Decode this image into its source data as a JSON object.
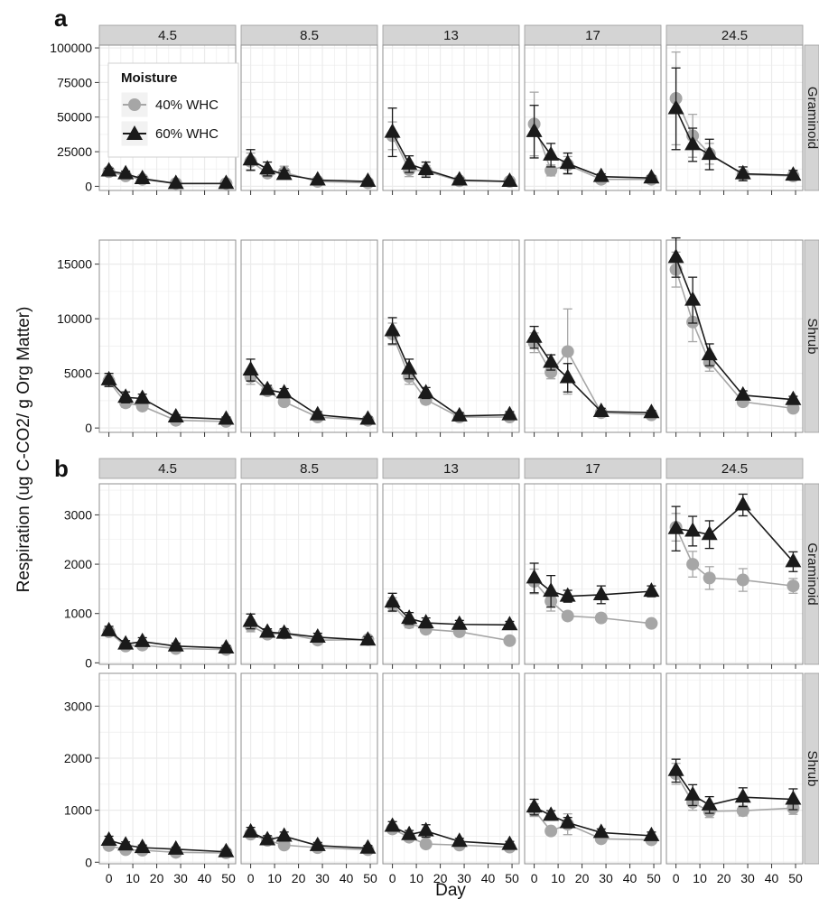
{
  "figure": {
    "y_axis_title": "Respiration (ug C-CO2/ g Org Matter)",
    "x_axis_title": "Day"
  },
  "legend": {
    "title": "Moisture",
    "entries": [
      "40% WHC",
      "60% WHC"
    ]
  },
  "colors": {
    "s40": "#a6a6a6",
    "s60": "#1a1a1a",
    "strip": "#d4d4d4",
    "grid": "#ebebeb"
  },
  "chart_data": [
    {
      "panel": "a",
      "type": "line",
      "facet_columns": [
        "4.5",
        "8.5",
        "13",
        "17",
        "24.5"
      ],
      "facet_rows": [
        "Graminoid",
        "Shrub"
      ],
      "x": [
        0,
        7,
        14,
        28,
        49
      ],
      "xlim": [
        -4,
        53
      ],
      "x_ticks": [
        0,
        10,
        20,
        30,
        40,
        50
      ],
      "series": [
        {
          "name": "40% WHC",
          "color": "#a6a6a6"
        },
        {
          "name": "60% WHC",
          "color": "#1a1a1a"
        }
      ],
      "rows": [
        {
          "label": "Graminoid",
          "ylim": [
            -3000,
            102000
          ],
          "y_ticks": [
            0,
            25000,
            50000,
            75000,
            100000
          ],
          "y_tick_labels": [
            "0",
            "25000",
            "50000",
            "75000",
            "100000"
          ],
          "panels": [
            {
              "column": "4.5",
              "s40": {
                "y": [
                  10500,
                  7500,
                  5000,
                  2000,
                  2000
                ],
                "err": [
                  2000,
                  1500,
                  1000,
                  500,
                  500
                ]
              },
              "s60": {
                "y": [
                  11000,
                  9000,
                  5500,
                  2000,
                  2000
                ],
                "err": [
                  2000,
                  2000,
                  1500,
                  500,
                  500
                ]
              }
            },
            {
              "column": "8.5",
              "s40": {
                "y": [
                  18000,
                  9500,
                  10000,
                  3500,
                  2500
                ],
                "err": [
                  6000,
                  3000,
                  4500,
                  1000,
                  1000
                ]
              },
              "s60": {
                "y": [
                  19000,
                  12500,
                  8500,
                  4500,
                  3500
                ],
                "err": [
                  7500,
                  5000,
                  3000,
                  1000,
                  1000
                ]
              }
            },
            {
              "column": "13",
              "s40": {
                "y": [
                  36500,
                  12000,
                  11000,
                  4000,
                  3500
                ],
                "err": [
                  10000,
                  5000,
                  4000,
                  1000,
                  1000
                ]
              },
              "s60": {
                "y": [
                  39000,
                  16000,
                  12000,
                  4500,
                  3500
                ],
                "err": [
                  17500,
                  6000,
                  5500,
                  1500,
                  1000
                ]
              }
            },
            {
              "column": "17",
              "s40": {
                "y": [
                  45000,
                  11500,
                  15500,
                  5000,
                  5000
                ],
                "err": [
                  23000,
                  4000,
                  6000,
                  1500,
                  1500
                ]
              },
              "s60": {
                "y": [
                  39500,
                  22500,
                  16500,
                  7000,
                  6000
                ],
                "err": [
                  19000,
                  8500,
                  7500,
                  2000,
                  1500
                ]
              }
            },
            {
              "column": "24.5",
              "s40": {
                "y": [
                  63500,
                  36500,
                  23500,
                  8500,
                  7500
                ],
                "err": [
                  33500,
                  15500,
                  7500,
                  2000,
                  1500
                ]
              },
              "s60": {
                "y": [
                  56000,
                  30000,
                  23000,
                  9000,
                  8000
                ],
                "err": [
                  29500,
                  12000,
                  11000,
                  5000,
                  3500
                ]
              }
            }
          ]
        },
        {
          "label": "Shrub",
          "ylim": [
            -400,
            17200
          ],
          "y_ticks": [
            0,
            5000,
            10000,
            15000
          ],
          "y_tick_labels": [
            "0",
            "5000",
            "10000",
            "15000"
          ],
          "panels": [
            {
              "column": "4.5",
              "s40": {
                "y": [
                  4300,
                  2300,
                  2000,
                  700,
                  600
                ],
                "err": [
                  500,
                  400,
                  300,
                  200,
                  200
                ]
              },
              "s60": {
                "y": [
                  4400,
                  2800,
                  2700,
                  1000,
                  800
                ],
                "err": [
                  600,
                  500,
                  400,
                  200,
                  200
                ]
              }
            },
            {
              "column": "8.5",
              "s40": {
                "y": [
                  4700,
                  3400,
                  2400,
                  1000,
                  700
                ],
                "err": [
                  700,
                  300,
                  300,
                  200,
                  200
                ]
              },
              "s60": {
                "y": [
                  5300,
                  3500,
                  3200,
                  1200,
                  800
                ],
                "err": [
                  1000,
                  400,
                  400,
                  300,
                  200
                ]
              }
            },
            {
              "column": "13",
              "s40": {
                "y": [
                  8600,
                  4700,
                  2600,
                  1000,
                  1000
                ],
                "err": [
                  1000,
                  700,
                  400,
                  200,
                  200
                ]
              },
              "s60": {
                "y": [
                  8900,
                  5400,
                  3200,
                  1100,
                  1200
                ],
                "err": [
                  1200,
                  900,
                  500,
                  300,
                  300
                ]
              }
            },
            {
              "column": "17",
              "s40": {
                "y": [
                  7800,
                  5100,
                  7000,
                  1400,
                  1200
                ],
                "err": [
                  900,
                  600,
                  3900,
                  200,
                  200
                ]
              },
              "s60": {
                "y": [
                  8300,
                  6000,
                  4600,
                  1500,
                  1400
                ],
                "err": [
                  1000,
                  700,
                  1300,
                  300,
                  200
                ]
              }
            },
            {
              "column": "24.5",
              "s40": {
                "y": [
                  14500,
                  9700,
                  6000,
                  2400,
                  1800
                ],
                "err": [
                  1600,
                  1800,
                  800,
                  300,
                  300
                ]
              },
              "s60": {
                "y": [
                  15600,
                  11700,
                  6700,
                  3000,
                  2600
                ],
                "err": [
                  1800,
                  2100,
                  1000,
                  400,
                  300
                ]
              }
            }
          ]
        }
      ]
    },
    {
      "panel": "b",
      "type": "line",
      "facet_columns": [
        "4.5",
        "8.5",
        "13",
        "17",
        "24.5"
      ],
      "facet_rows": [
        "Graminoid",
        "Shrub"
      ],
      "x": [
        0,
        7,
        14,
        28,
        49
      ],
      "xlim": [
        -4,
        53
      ],
      "x_ticks": [
        0,
        10,
        20,
        30,
        40,
        50
      ],
      "x_tick_labels": [
        "0",
        "10",
        "20",
        "30",
        "40",
        "50"
      ],
      "series": [
        {
          "name": "40% WHC",
          "color": "#a6a6a6"
        },
        {
          "name": "60% WHC",
          "color": "#1a1a1a"
        }
      ],
      "rows": [
        {
          "label": "Graminoid",
          "ylim": [
            -30,
            3630
          ],
          "y_ticks": [
            0,
            1000,
            2000,
            3000
          ],
          "y_tick_labels": [
            "0",
            "1000",
            "2000",
            "3000"
          ],
          "panels": [
            {
              "column": "4.5",
              "s40": {
                "y": [
                  630,
                  340,
                  360,
                  290,
                  270
                ],
                "err": [
                  80,
                  60,
                  60,
                  40,
                  40
                ]
              },
              "s60": {
                "y": [
                  650,
                  380,
                  430,
                  340,
                  300
                ],
                "err": [
                  90,
                  70,
                  80,
                  60,
                  50
                ]
              }
            },
            {
              "column": "8.5",
              "s40": {
                "y": [
                  750,
                  580,
                  600,
                  460,
                  470
                ],
                "err": [
                  120,
                  60,
                  80,
                  60,
                  60
                ]
              },
              "s60": {
                "y": [
                  840,
                  620,
                  600,
                  520,
                  460
                ],
                "err": [
                  150,
                  70,
                  90,
                  80,
                  70
                ]
              }
            },
            {
              "column": "13",
              "s40": {
                "y": [
                  1180,
                  810,
                  680,
                  630,
                  450
                ],
                "err": [
                  140,
                  100,
                  80,
                  70,
                  50
                ]
              },
              "s60": {
                "y": [
                  1230,
                  900,
                  810,
                  780,
                  770
                ],
                "err": [
                  180,
                  120,
                  100,
                  80,
                  70
                ]
              }
            },
            {
              "column": "17",
              "s40": {
                "y": [
                  1650,
                  1250,
                  950,
                  910,
                  800
                ],
                "err": [
                  250,
                  200,
                  80,
                  80,
                  80
                ]
              },
              "s60": {
                "y": [
                  1720,
                  1450,
                  1350,
                  1380,
                  1450
                ],
                "err": [
                  300,
                  320,
                  120,
                  180,
                  110
                ]
              }
            },
            {
              "column": "24.5",
              "s40": {
                "y": [
                  2750,
                  2000,
                  1720,
                  1680,
                  1560
                ],
                "err": [
                  280,
                  260,
                  230,
                  230,
                  150
                ]
              },
              "s60": {
                "y": [
                  2720,
                  2670,
                  2600,
                  3200,
                  2050
                ],
                "err": [
                  450,
                  300,
                  280,
                  220,
                  200
                ]
              }
            }
          ]
        },
        {
          "label": "Shrub",
          "ylim": [
            -30,
            3630
          ],
          "y_ticks": [
            0,
            1000,
            2000,
            3000
          ],
          "y_tick_labels": [
            "0",
            "1000",
            "2000",
            "3000"
          ],
          "panels": [
            {
              "column": "4.5",
              "s40": {
                "y": [
                  320,
                  240,
                  230,
                  190,
                  180
                ],
                "err": [
                  60,
                  40,
                  40,
                  40,
                  40
                ]
              },
              "s60": {
                "y": [
                  420,
                  330,
                  280,
                  250,
                  200
                ],
                "err": [
                  80,
                  60,
                  50,
                  40,
                  40
                ]
              }
            },
            {
              "column": "8.5",
              "s40": {
                "y": [
                  540,
                  420,
                  330,
                  280,
                  240
                ],
                "err": [
                  70,
                  60,
                  50,
                  40,
                  40
                ]
              },
              "s60": {
                "y": [
                  580,
                  430,
                  500,
                  320,
                  270
                ],
                "err": [
                  90,
                  80,
                  80,
                  60,
                  50
                ]
              }
            },
            {
              "column": "13",
              "s40": {
                "y": [
                  640,
                  480,
                  350,
                  330,
                  290
                ],
                "err": [
                  80,
                  70,
                  60,
                  50,
                  40
                ]
              },
              "s60": {
                "y": [
                  690,
                  530,
                  600,
                  400,
                  340
                ],
                "err": [
                  90,
                  80,
                  120,
                  60,
                  60
                ]
              }
            },
            {
              "column": "17",
              "s40": {
                "y": [
                  1000,
                  600,
                  730,
                  450,
                  430
                ],
                "err": [
                  120,
                  60,
                  200,
                  60,
                  60
                ]
              },
              "s60": {
                "y": [
                  1060,
                  900,
                  760,
                  570,
                  510
                ],
                "err": [
                  150,
                  90,
                  100,
                  70,
                  70
                ]
              }
            },
            {
              "column": "24.5",
              "s40": {
                "y": [
                  1700,
                  1150,
                  980,
                  990,
                  1040
                ],
                "err": [
                  200,
                  150,
                  120,
                  100,
                  120
                ]
              },
              "s60": {
                "y": [
                  1760,
                  1290,
                  1100,
                  1250,
                  1210
                ],
                "err": [
                  220,
                  200,
                  160,
                  180,
                  200
                ]
              }
            }
          ]
        }
      ]
    }
  ]
}
